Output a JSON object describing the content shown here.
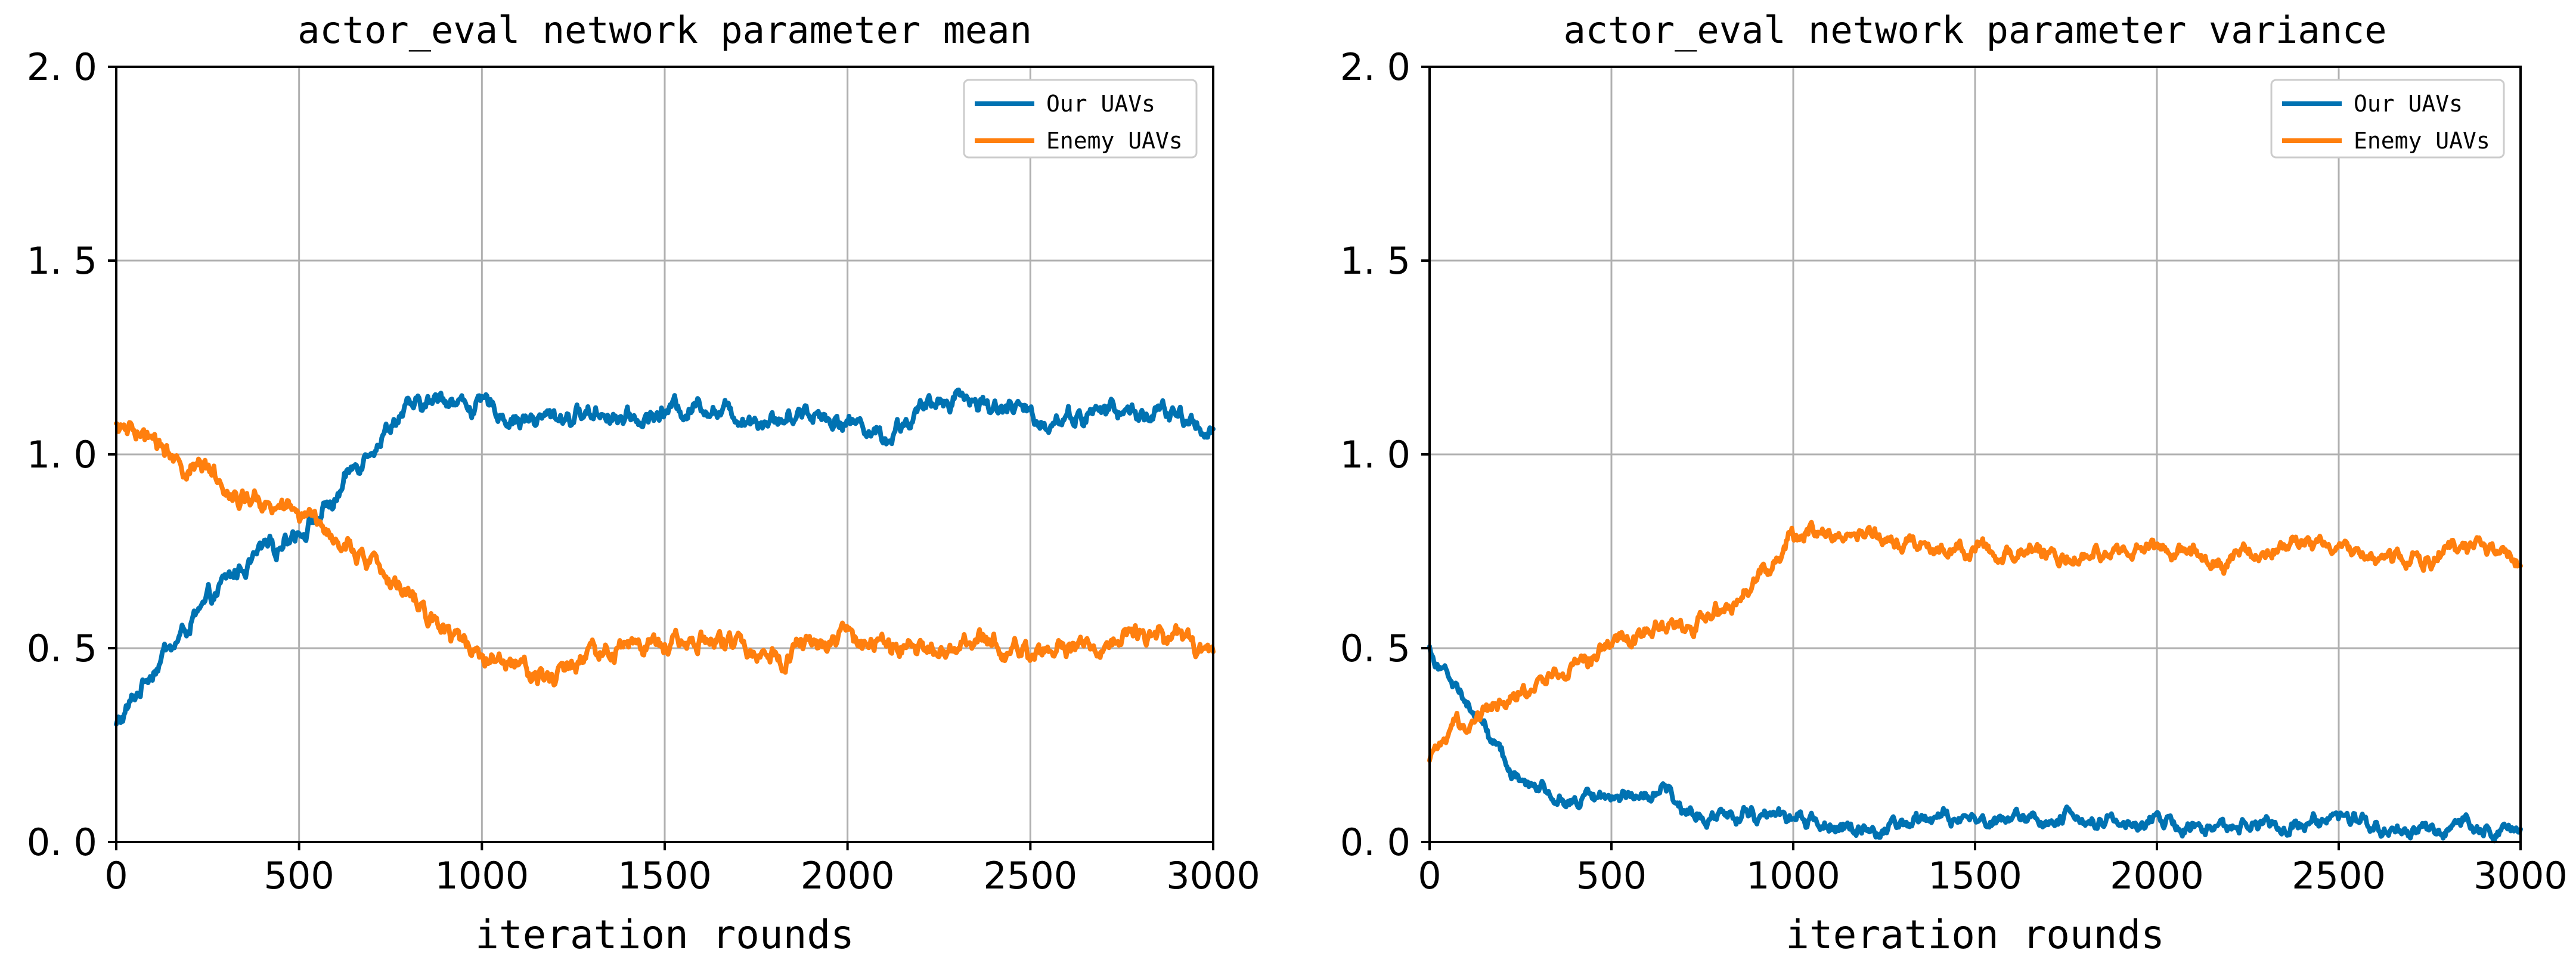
{
  "chart_data": [
    {
      "type": "line",
      "title": "actor_eval network parameter mean",
      "xlabel": "iteration rounds",
      "ylabel": "",
      "xlim": [
        0,
        3000
      ],
      "ylim": [
        0,
        2.0
      ],
      "xticks": [
        0,
        500,
        1000,
        1500,
        2000,
        2500,
        3000
      ],
      "xtick_labels": [
        "0",
        "500",
        "1000",
        "1500",
        "2000",
        "2500",
        "3000"
      ],
      "yticks": [
        0,
        0.5,
        1.0,
        1.5,
        2.0
      ],
      "ytick_labels": [
        "0. 0",
        "0. 5",
        "1. 0",
        "1. 5",
        "2. 0"
      ],
      "grid": true,
      "legend_position": "top-right",
      "series": [
        {
          "name": "Our UAVs",
          "color": "#0072b2",
          "noise": 0.028,
          "x": [
            0,
            100,
            200,
            300,
            400,
            500,
            600,
            700,
            800,
            900,
            1000,
            1100,
            1200,
            1300,
            1400,
            1500,
            1600,
            1700,
            1800,
            1900,
            2000,
            2050,
            2100,
            2200,
            2300,
            2400,
            2500,
            2600,
            2700,
            2800,
            2900,
            3000
          ],
          "y": [
            0.3,
            0.45,
            0.56,
            0.66,
            0.76,
            0.82,
            0.88,
            1.02,
            1.1,
            1.14,
            1.12,
            1.08,
            1.1,
            1.11,
            1.1,
            1.12,
            1.14,
            1.12,
            1.1,
            1.11,
            1.1,
            1.08,
            1.05,
            1.1,
            1.15,
            1.12,
            1.1,
            1.1,
            1.11,
            1.1,
            1.1,
            1.07
          ]
        },
        {
          "name": "Enemy UAVs",
          "color": "#ff7f0e",
          "noise": 0.03,
          "x": [
            0,
            100,
            200,
            300,
            400,
            500,
            600,
            700,
            800,
            900,
            1000,
            1100,
            1200,
            1300,
            1400,
            1500,
            1600,
            1700,
            1800,
            1900,
            2000,
            2100,
            2200,
            2300,
            2400,
            2500,
            2600,
            2700,
            2800,
            2900,
            3000
          ],
          "y": [
            1.07,
            1.02,
            0.98,
            0.93,
            0.88,
            0.85,
            0.8,
            0.7,
            0.64,
            0.56,
            0.5,
            0.48,
            0.44,
            0.49,
            0.51,
            0.52,
            0.54,
            0.51,
            0.5,
            0.52,
            0.52,
            0.52,
            0.49,
            0.5,
            0.5,
            0.49,
            0.5,
            0.52,
            0.53,
            0.5,
            0.48
          ]
        }
      ]
    },
    {
      "type": "line",
      "title": "actor_eval network parameter variance",
      "xlabel": "iteration rounds",
      "ylabel": "",
      "xlim": [
        0,
        3000
      ],
      "ylim": [
        0,
        2.0
      ],
      "xticks": [
        0,
        500,
        1000,
        1500,
        2000,
        2500,
        3000
      ],
      "xtick_labels": [
        "0",
        "500",
        "1000",
        "1500",
        "2000",
        "2500",
        "3000"
      ],
      "yticks": [
        0,
        0.5,
        1.0,
        1.5,
        2.0
      ],
      "ytick_labels": [
        "0. 0",
        "0. 5",
        "1. 0",
        "1. 5",
        "2. 0"
      ],
      "grid": true,
      "legend_position": "top-right",
      "series": [
        {
          "name": "Our UAVs",
          "color": "#0072b2",
          "noise": 0.022,
          "x": [
            0,
            50,
            100,
            150,
            200,
            250,
            300,
            400,
            500,
            600,
            650,
            700,
            800,
            900,
            1000,
            1100,
            1200,
            1300,
            1400,
            1500,
            1600,
            1700,
            1800,
            1900,
            2000,
            2100,
            2200,
            2300,
            2400,
            2500,
            2600,
            2700,
            2800,
            2900,
            3000
          ],
          "y": [
            0.5,
            0.44,
            0.36,
            0.3,
            0.22,
            0.16,
            0.12,
            0.11,
            0.12,
            0.13,
            0.14,
            0.08,
            0.08,
            0.07,
            0.06,
            0.05,
            0.04,
            0.03,
            0.05,
            0.06,
            0.07,
            0.06,
            0.05,
            0.05,
            0.05,
            0.04,
            0.04,
            0.05,
            0.06,
            0.05,
            0.04,
            0.04,
            0.04,
            0.05,
            0.03
          ]
        },
        {
          "name": "Enemy UAVs",
          "color": "#ff7f0e",
          "noise": 0.025,
          "x": [
            0,
            100,
            200,
            300,
            400,
            500,
            600,
            700,
            800,
            900,
            950,
            1000,
            1100,
            1200,
            1300,
            1400,
            1500,
            1600,
            1700,
            1800,
            1900,
            2000,
            2100,
            2200,
            2300,
            2400,
            2500,
            2600,
            2700,
            2800,
            2900,
            3000
          ],
          "y": [
            0.2,
            0.3,
            0.36,
            0.42,
            0.47,
            0.5,
            0.53,
            0.56,
            0.6,
            0.66,
            0.72,
            0.78,
            0.8,
            0.8,
            0.78,
            0.75,
            0.74,
            0.74,
            0.74,
            0.73,
            0.74,
            0.75,
            0.76,
            0.74,
            0.76,
            0.78,
            0.76,
            0.74,
            0.74,
            0.75,
            0.75,
            0.73
          ]
        }
      ]
    }
  ]
}
